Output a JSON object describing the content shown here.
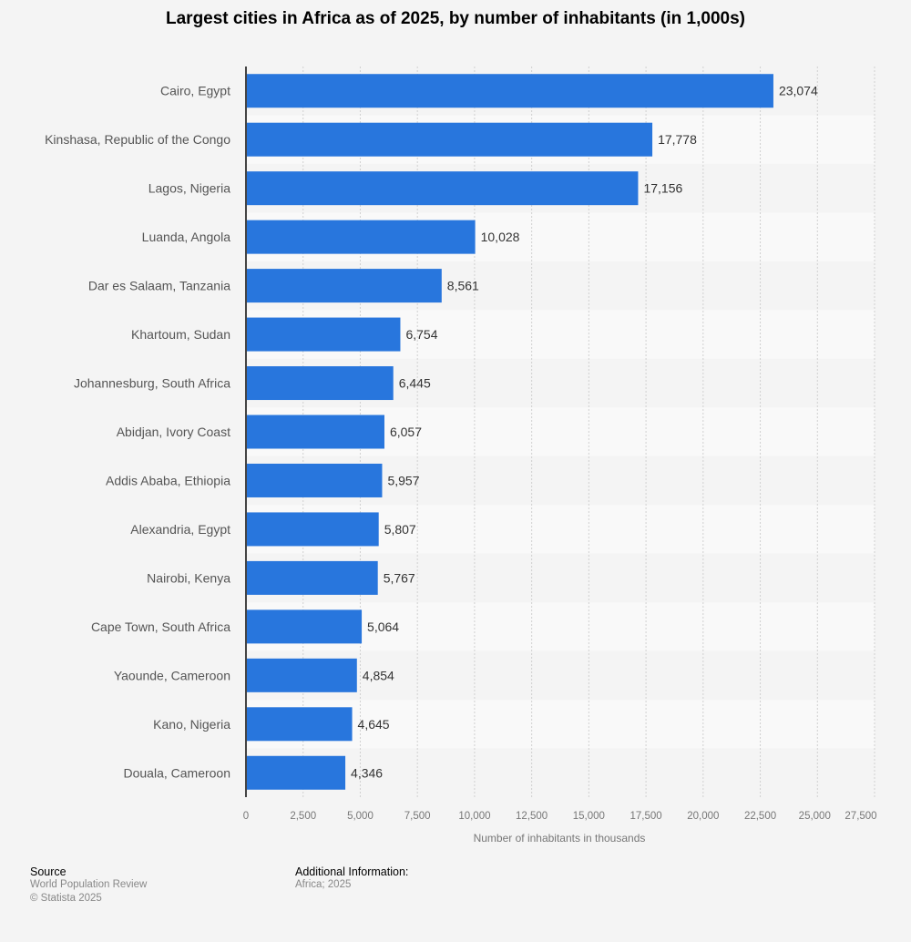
{
  "chart_data": {
    "type": "bar",
    "orientation": "horizontal",
    "title": "Largest cities in Africa as of 2025, by number of inhabitants (in 1,000s)",
    "xlabel": "Number of inhabitants in thousands",
    "ylabel": "",
    "xlim": [
      0,
      27500
    ],
    "xticks": [
      "0",
      "2,500",
      "5,000",
      "7,500",
      "10,000",
      "12,500",
      "15,000",
      "17,500",
      "20,000",
      "22,500",
      "25,000",
      "27,500"
    ],
    "grid": true,
    "bar_color": "#2876dd",
    "categories": [
      "Cairo, Egypt",
      "Kinshasa, Republic of the Congo",
      "Lagos, Nigeria",
      "Luanda, Angola",
      "Dar es Salaam, Tanzania",
      "Khartoum, Sudan",
      "Johannesburg, South Africa",
      "Abidjan, Ivory Coast",
      "Addis Ababa, Ethiopia",
      "Alexandria, Egypt",
      "Nairobi, Kenya",
      "Cape Town, South Africa",
      "Yaounde, Cameroon",
      "Kano, Nigeria",
      "Douala, Cameroon"
    ],
    "values": [
      23074,
      17778,
      17156,
      10028,
      8561,
      6754,
      6445,
      6057,
      5957,
      5807,
      5767,
      5064,
      4854,
      4645,
      4346
    ],
    "labels": [
      "23,074",
      "17,778",
      "17,156",
      "10,028",
      "8,561",
      "6,754",
      "6,445",
      "6,057",
      "5,957",
      "5,807",
      "5,767",
      "5,064",
      "4,854",
      "4,645",
      "4,346"
    ]
  },
  "footer": {
    "source_heading": "Source",
    "source_lines": [
      "World Population Review",
      "© Statista 2025"
    ],
    "info_heading": "Additional Information:",
    "info_lines": [
      "Africa; 2025"
    ]
  }
}
